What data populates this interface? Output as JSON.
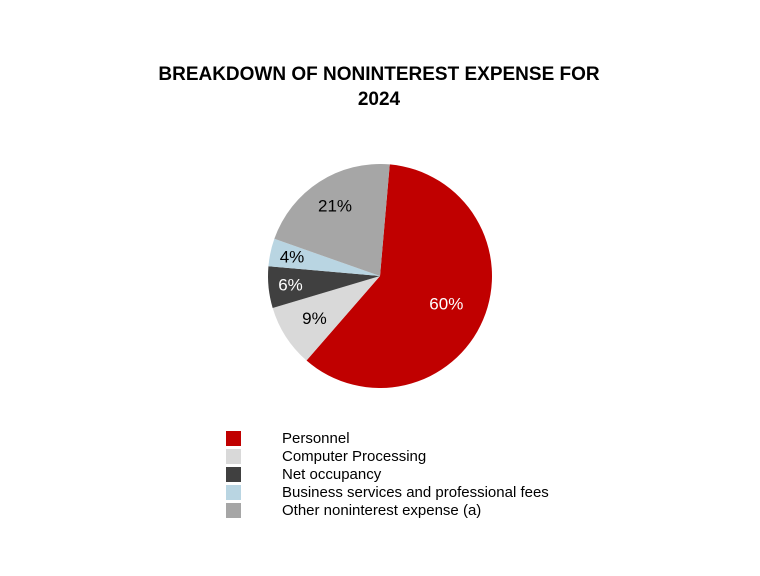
{
  "chart_data": {
    "type": "pie",
    "title": [
      "BREAKDOWN OF NONINTEREST EXPENSE FOR",
      "2024"
    ],
    "slices": [
      {
        "label": "Personnel",
        "value": 60,
        "display": "60%",
        "color": "#c00000",
        "label_color": "#ffffff"
      },
      {
        "label": "Computer Processing",
        "value": 9,
        "display": "9%",
        "color": "#d9d9d9",
        "label_color": "#000000"
      },
      {
        "label": "Net occupancy",
        "value": 6,
        "display": "6%",
        "color": "#404040",
        "label_color": "#ffffff"
      },
      {
        "label": "Business services and professional fees",
        "value": 4,
        "display": "4%",
        "color": "#b9d5e2",
        "label_color": "#000000"
      },
      {
        "label": "Other noninterest expense (a)",
        "value": 21,
        "display": "21%",
        "color": "#a6a6a6",
        "label_color": "#000000"
      }
    ],
    "legend_position": "bottom"
  }
}
